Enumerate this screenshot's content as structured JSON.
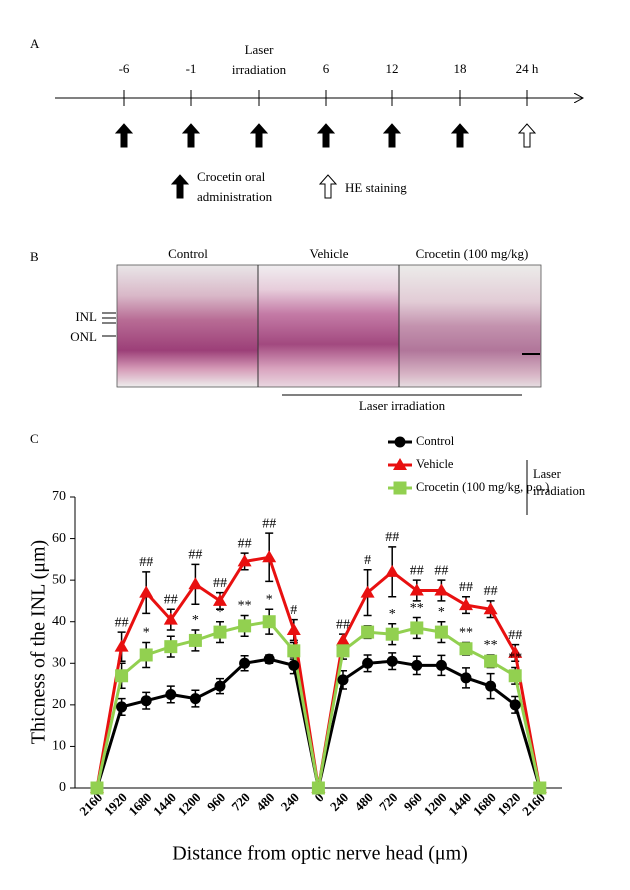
{
  "panel_a": {
    "label": "A",
    "timeline": [
      "-6",
      "-1",
      "Laser irradiation",
      "6",
      "12",
      "18",
      "24 h"
    ],
    "legend": [
      "Crocetin oral administration",
      "HE staining"
    ]
  },
  "panel_b": {
    "label": "B",
    "columns": [
      "Control",
      "Vehicle",
      "Crocetin (100 mg/kg)"
    ],
    "layers": [
      "INL",
      "ONL"
    ],
    "bracket": "Laser irradiation"
  },
  "chart_data": {
    "type": "line",
    "panel_label": "C",
    "y_label": "Thicness of the INL (μm)",
    "x_label": "Distance from optic nerve head (μm)",
    "categories": [
      "2160",
      "1920",
      "1680",
      "1440",
      "1200",
      "960",
      "720",
      "480",
      "240",
      "0",
      "240",
      "480",
      "720",
      "960",
      "1200",
      "1440",
      "1680",
      "1920",
      "2160"
    ],
    "ylim": [
      0,
      70
    ],
    "yticks": [
      0,
      10,
      20,
      30,
      40,
      50,
      60,
      70
    ],
    "legend_bracket": "Laser irradiation",
    "series": [
      {
        "name": "Control",
        "color": "#000000",
        "marker": "circle",
        "values": [
          0,
          19.5,
          21,
          22.5,
          21.5,
          24.5,
          30,
          31,
          29.5,
          0,
          26,
          30,
          30.5,
          29.5,
          29.5,
          26.5,
          24.5,
          20,
          0
        ],
        "errors": [
          null,
          2,
          2,
          2,
          2,
          1.8,
          1.8,
          1,
          2,
          null,
          2.2,
          2,
          2,
          2.2,
          2.4,
          2.4,
          3,
          2,
          null
        ],
        "annotations": [
          null,
          null,
          null,
          null,
          null,
          null,
          null,
          null,
          null,
          null,
          null,
          null,
          null,
          null,
          null,
          null,
          null,
          null,
          null
        ]
      },
      {
        "name": "Vehicle",
        "color": "#e81010",
        "marker": "triangle",
        "values": [
          0,
          34,
          47,
          40.5,
          49,
          45,
          54.5,
          55.5,
          38,
          0,
          35.5,
          47,
          52,
          47.5,
          47.5,
          44,
          43,
          32.5,
          0
        ],
        "errors": [
          null,
          3.5,
          5,
          2.5,
          4.8,
          2,
          2,
          5.8,
          2.5,
          null,
          1.5,
          5.5,
          6,
          2.5,
          2.5,
          2,
          2,
          2,
          null
        ],
        "annotations": [
          null,
          "##",
          "##",
          "##",
          "##",
          "##",
          "##",
          "##",
          "#",
          null,
          "##",
          "#",
          "##",
          "##",
          "##",
          "##",
          "##",
          "##",
          null
        ]
      },
      {
        "name": "Crocetin (100 mg/kg, p.o.)",
        "color": "#92d050",
        "marker": "square",
        "values": [
          0,
          27,
          32,
          34,
          35.5,
          37.5,
          39,
          40,
          33,
          0,
          33,
          37.5,
          37,
          38.5,
          37.5,
          33.5,
          30.5,
          27,
          0
        ],
        "errors": [
          null,
          3,
          3,
          2.5,
          2.5,
          2.5,
          2.5,
          3,
          2,
          null,
          2,
          1.5,
          2.5,
          2.5,
          2.5,
          1.5,
          1.5,
          2,
          null
        ],
        "annotations": [
          null,
          null,
          "*",
          null,
          "*",
          "*",
          "**",
          "*",
          null,
          null,
          null,
          null,
          "*",
          "**",
          "*",
          "**",
          "**",
          "**",
          null
        ]
      }
    ]
  }
}
